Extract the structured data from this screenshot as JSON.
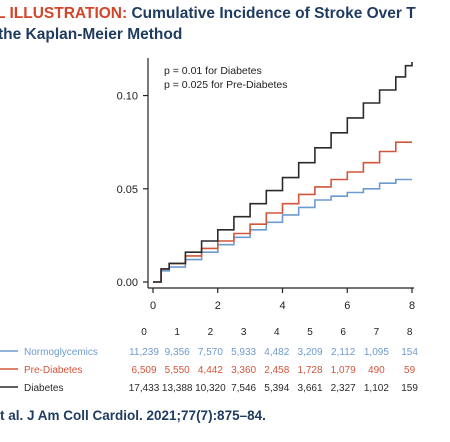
{
  "header": {
    "title_prefix": "L ILLUSTRATION:",
    "title_main": "Cumulative Incidence of Stroke Over T",
    "title_line2": "the Kaplan-Meier Method"
  },
  "colors": {
    "normoglycemics": "#6e9bcf",
    "prediabetes": "#d2563c",
    "diabetes": "#2b2b2b",
    "axis": "#222222",
    "title": "#1f3b5f",
    "title_accent": "#d4452a"
  },
  "chart_data": {
    "type": "line",
    "title": "",
    "xlabel": "",
    "ylabel": "",
    "xlim": [
      0,
      8
    ],
    "ylim": [
      0,
      0.12
    ],
    "x_ticks": [
      "0",
      "2",
      "4",
      "6",
      "8"
    ],
    "y_ticks": [
      "0.00",
      "0.05",
      "0.10"
    ],
    "grid": false,
    "annotations": [
      "p = 0.01 for Diabetes",
      "p = 0.025 for Pre-Diabetes"
    ],
    "series": [
      {
        "name": "Normoglycemics",
        "x": [
          0,
          0.25,
          0.5,
          1,
          1.5,
          2,
          2.5,
          3,
          3.5,
          4,
          4.5,
          5,
          5.5,
          6,
          6.5,
          7,
          7.5,
          8
        ],
        "y": [
          0,
          0.006,
          0.008,
          0.012,
          0.016,
          0.02,
          0.024,
          0.028,
          0.032,
          0.036,
          0.04,
          0.044,
          0.046,
          0.048,
          0.05,
          0.053,
          0.055,
          0.055
        ]
      },
      {
        "name": "Pre-Diabetes",
        "x": [
          0,
          0.25,
          0.5,
          1,
          1.5,
          2,
          2.5,
          3,
          3.5,
          4,
          4.5,
          5,
          5.5,
          6,
          6.5,
          7,
          7.5,
          8
        ],
        "y": [
          0,
          0.007,
          0.01,
          0.014,
          0.018,
          0.022,
          0.026,
          0.031,
          0.037,
          0.042,
          0.047,
          0.051,
          0.055,
          0.059,
          0.064,
          0.07,
          0.075,
          0.075
        ]
      },
      {
        "name": "Diabetes",
        "x": [
          0,
          0.25,
          0.5,
          1,
          1.5,
          2,
          2.5,
          3,
          3.5,
          4,
          4.5,
          5,
          5.5,
          6,
          6.5,
          7,
          7.5,
          7.8,
          8
        ],
        "y": [
          0,
          0.007,
          0.01,
          0.016,
          0.022,
          0.028,
          0.035,
          0.042,
          0.049,
          0.056,
          0.064,
          0.072,
          0.08,
          0.088,
          0.096,
          0.103,
          0.11,
          0.116,
          0.118
        ]
      }
    ],
    "risk_table": {
      "time_points": [
        "0",
        "1",
        "2",
        "3",
        "4",
        "5",
        "6",
        "7",
        "8"
      ],
      "rows": [
        {
          "label": "Normoglycemics",
          "values": [
            "11,239",
            "9,356",
            "7,570",
            "5,933",
            "4,482",
            "3,209",
            "2,112",
            "1,095",
            "154"
          ]
        },
        {
          "label": "Pre-Diabetes",
          "values": [
            "6,509",
            "5,550",
            "4,442",
            "3,360",
            "2,458",
            "1,728",
            "1,079",
            "490",
            "59"
          ]
        },
        {
          "label": "Diabetes",
          "values": [
            "17,433",
            "13,388",
            "10,320",
            "7,546",
            "5,394",
            "3,661",
            "2,327",
            "1,102",
            "159"
          ]
        }
      ]
    }
  },
  "citation": "t al. J Am Coll Cardiol. 2021;77(7):875–84."
}
